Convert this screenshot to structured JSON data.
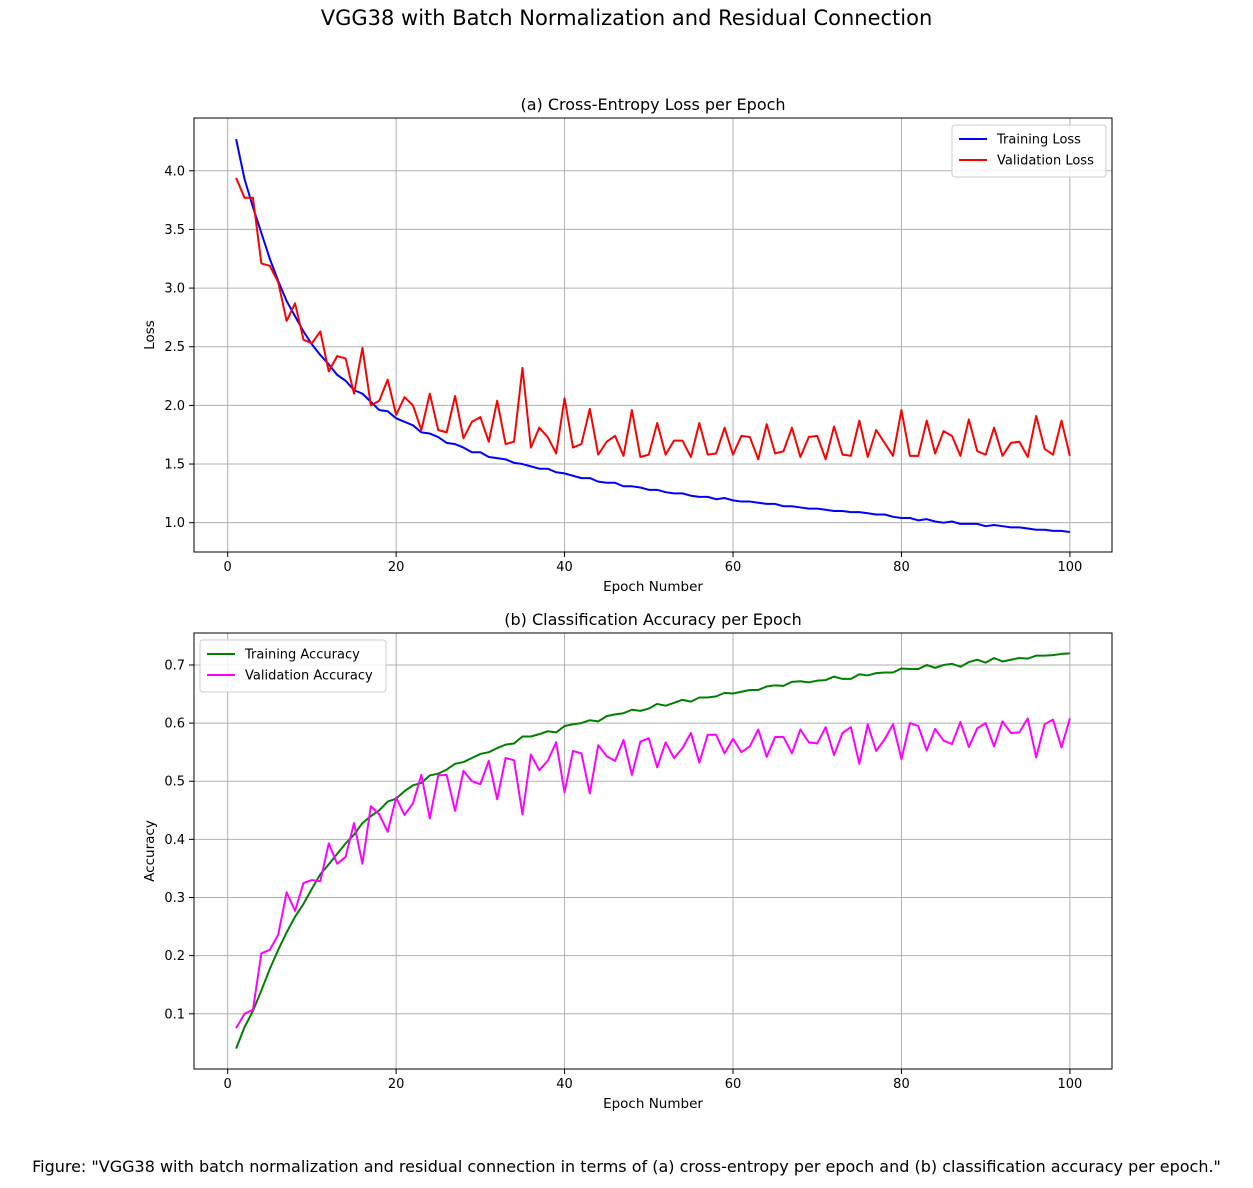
{
  "figure": {
    "suptitle": "VGG38 with Batch Normalization and Residual Connection",
    "caption": "Figure: \"VGG38 with batch normalization and residual connection in terms of (a) cross-entropy per epoch and (b) classification accuracy per epoch.\""
  },
  "colors": {
    "training_loss": "#0000ff",
    "validation_loss": "#ff0000",
    "training_accuracy": "#008000",
    "validation_accuracy": "#ff00ff",
    "grid": "#b0b0b0"
  },
  "chart_data": [
    {
      "type": "line",
      "title": "(a) Cross-Entropy Loss per Epoch",
      "xlabel": "Epoch Number",
      "ylabel": "Loss",
      "xlim": [
        -4,
        105
      ],
      "ylim": [
        0.75,
        4.45
      ],
      "xticks": [
        0,
        20,
        40,
        60,
        80,
        100
      ],
      "xtick_labels": [
        "0",
        "20",
        "40",
        "60",
        "80",
        "100"
      ],
      "yticks": [
        1.0,
        1.5,
        2.0,
        2.5,
        3.0,
        3.5,
        4.0
      ],
      "ytick_labels": [
        "1.0",
        "1.5",
        "2.0",
        "2.5",
        "3.0",
        "3.5",
        "4.0"
      ],
      "grid": true,
      "legend": "top-right",
      "series": [
        {
          "name": "Training Loss",
          "color": "#0000ff",
          "x_start": 1,
          "values": [
            4.27,
            3.93,
            3.69,
            3.47,
            3.25,
            3.06,
            2.89,
            2.76,
            2.63,
            2.52,
            2.43,
            2.35,
            2.26,
            2.21,
            2.13,
            2.1,
            2.03,
            1.96,
            1.95,
            1.89,
            1.86,
            1.83,
            1.77,
            1.76,
            1.73,
            1.68,
            1.67,
            1.64,
            1.6,
            1.6,
            1.56,
            1.55,
            1.54,
            1.51,
            1.5,
            1.48,
            1.46,
            1.46,
            1.43,
            1.42,
            1.4,
            1.38,
            1.38,
            1.35,
            1.34,
            1.34,
            1.31,
            1.31,
            1.3,
            1.28,
            1.28,
            1.26,
            1.25,
            1.25,
            1.23,
            1.22,
            1.22,
            1.2,
            1.21,
            1.19,
            1.18,
            1.18,
            1.17,
            1.16,
            1.16,
            1.14,
            1.14,
            1.13,
            1.12,
            1.12,
            1.11,
            1.1,
            1.1,
            1.09,
            1.09,
            1.08,
            1.07,
            1.07,
            1.05,
            1.04,
            1.04,
            1.02,
            1.03,
            1.01,
            1.0,
            1.01,
            0.99,
            0.99,
            0.99,
            0.97,
            0.98,
            0.97,
            0.96,
            0.96,
            0.95,
            0.94,
            0.94,
            0.93,
            0.93,
            0.92
          ]
        },
        {
          "name": "Validation Loss",
          "color": "#ff0000",
          "x_start": 1,
          "values": [
            3.94,
            3.77,
            3.77,
            3.21,
            3.19,
            3.05,
            2.72,
            2.87,
            2.56,
            2.53,
            2.63,
            2.29,
            2.42,
            2.4,
            2.1,
            2.49,
            2.0,
            2.04,
            2.22,
            1.92,
            2.07,
            2.0,
            1.79,
            2.1,
            1.79,
            1.77,
            2.08,
            1.72,
            1.86,
            1.9,
            1.69,
            2.04,
            1.67,
            1.69,
            2.32,
            1.64,
            1.81,
            1.73,
            1.59,
            2.06,
            1.64,
            1.67,
            1.97,
            1.58,
            1.69,
            1.74,
            1.57,
            1.96,
            1.56,
            1.58,
            1.85,
            1.58,
            1.7,
            1.7,
            1.56,
            1.85,
            1.58,
            1.59,
            1.81,
            1.58,
            1.74,
            1.73,
            1.54,
            1.84,
            1.59,
            1.61,
            1.81,
            1.56,
            1.73,
            1.74,
            1.54,
            1.82,
            1.58,
            1.57,
            1.87,
            1.56,
            1.79,
            1.68,
            1.57,
            1.96,
            1.57,
            1.57,
            1.87,
            1.59,
            1.78,
            1.74,
            1.57,
            1.88,
            1.61,
            1.58,
            1.81,
            1.57,
            1.68,
            1.69,
            1.56,
            1.91,
            1.63,
            1.58,
            1.87,
            1.57
          ]
        }
      ]
    },
    {
      "type": "line",
      "title": "(b) Classification Accuracy per Epoch",
      "xlabel": "Epoch Number",
      "ylabel": "Accuracy",
      "xlim": [
        -4,
        105
      ],
      "ylim": [
        0.005,
        0.755
      ],
      "xticks": [
        0,
        20,
        40,
        60,
        80,
        100
      ],
      "xtick_labels": [
        "0",
        "20",
        "40",
        "60",
        "80",
        "100"
      ],
      "yticks": [
        0.1,
        0.2,
        0.3,
        0.4,
        0.5,
        0.6,
        0.7
      ],
      "ytick_labels": [
        "0.1",
        "0.2",
        "0.3",
        "0.4",
        "0.5",
        "0.6",
        "0.7"
      ],
      "grid": true,
      "legend": "top-left",
      "series": [
        {
          "name": "Training Accuracy",
          "color": "#008000",
          "x_start": 1,
          "values": [
            0.04,
            0.077,
            0.105,
            0.14,
            0.177,
            0.21,
            0.24,
            0.267,
            0.289,
            0.315,
            0.34,
            0.357,
            0.375,
            0.393,
            0.408,
            0.428,
            0.44,
            0.45,
            0.465,
            0.47,
            0.483,
            0.493,
            0.497,
            0.51,
            0.513,
            0.52,
            0.53,
            0.533,
            0.54,
            0.547,
            0.55,
            0.557,
            0.563,
            0.565,
            0.577,
            0.577,
            0.581,
            0.586,
            0.584,
            0.595,
            0.598,
            0.6,
            0.605,
            0.603,
            0.612,
            0.615,
            0.617,
            0.623,
            0.621,
            0.625,
            0.633,
            0.63,
            0.635,
            0.64,
            0.637,
            0.644,
            0.644,
            0.646,
            0.652,
            0.651,
            0.654,
            0.657,
            0.657,
            0.663,
            0.665,
            0.664,
            0.671,
            0.672,
            0.67,
            0.673,
            0.674,
            0.68,
            0.676,
            0.676,
            0.684,
            0.682,
            0.686,
            0.687,
            0.687,
            0.694,
            0.693,
            0.693,
            0.7,
            0.695,
            0.7,
            0.702,
            0.697,
            0.705,
            0.709,
            0.704,
            0.712,
            0.706,
            0.709,
            0.712,
            0.711,
            0.716,
            0.716,
            0.717,
            0.719,
            0.72
          ]
        },
        {
          "name": "Validation Accuracy",
          "color": "#ff00ff",
          "x_start": 1,
          "values": [
            0.075,
            0.1,
            0.107,
            0.204,
            0.21,
            0.236,
            0.309,
            0.277,
            0.325,
            0.33,
            0.328,
            0.393,
            0.358,
            0.37,
            0.428,
            0.358,
            0.457,
            0.443,
            0.413,
            0.472,
            0.442,
            0.462,
            0.511,
            0.436,
            0.51,
            0.511,
            0.449,
            0.518,
            0.5,
            0.495,
            0.535,
            0.469,
            0.54,
            0.536,
            0.443,
            0.546,
            0.519,
            0.535,
            0.567,
            0.481,
            0.552,
            0.548,
            0.479,
            0.562,
            0.543,
            0.535,
            0.571,
            0.511,
            0.568,
            0.574,
            0.524,
            0.567,
            0.54,
            0.557,
            0.583,
            0.532,
            0.58,
            0.58,
            0.548,
            0.573,
            0.55,
            0.56,
            0.589,
            0.542,
            0.576,
            0.576,
            0.548,
            0.589,
            0.567,
            0.565,
            0.593,
            0.545,
            0.583,
            0.593,
            0.53,
            0.598,
            0.552,
            0.572,
            0.598,
            0.538,
            0.6,
            0.595,
            0.553,
            0.59,
            0.57,
            0.564,
            0.602,
            0.559,
            0.591,
            0.6,
            0.56,
            0.603,
            0.583,
            0.584,
            0.608,
            0.541,
            0.598,
            0.606,
            0.558,
            0.608
          ]
        }
      ]
    }
  ]
}
